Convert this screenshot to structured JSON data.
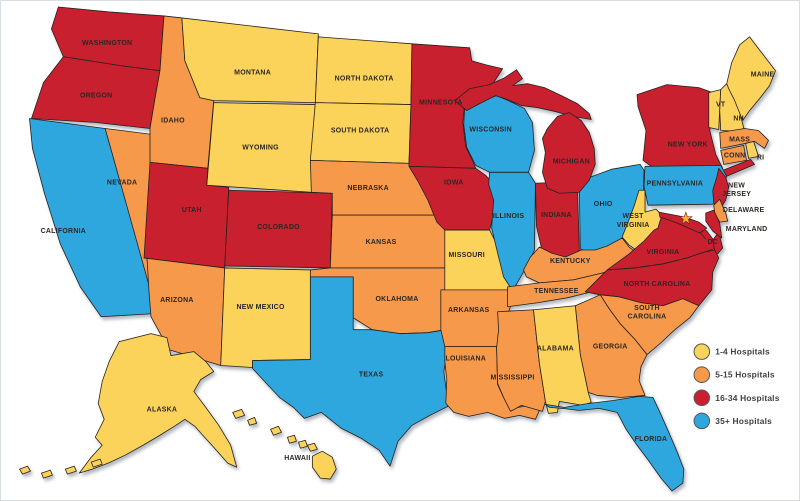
{
  "map": {
    "title_hint": "US map of hospitals per state",
    "dc_label": "DC",
    "star_color": "#F7B32B",
    "states": [
      {
        "id": "WA",
        "label": "WASHINGTON",
        "hospitals": "16-34"
      },
      {
        "id": "OR",
        "label": "OREGON",
        "hospitals": "16-34"
      },
      {
        "id": "CA",
        "label": "CALIFORNIA",
        "hospitals": "35+"
      },
      {
        "id": "NV",
        "label": "NEVADA",
        "hospitals": "5-15"
      },
      {
        "id": "ID",
        "label": "IDAHO",
        "hospitals": "5-15"
      },
      {
        "id": "MT",
        "label": "MONTANA",
        "hospitals": "1-4"
      },
      {
        "id": "WY",
        "label": "WYOMING",
        "hospitals": "1-4"
      },
      {
        "id": "UT",
        "label": "UTAH",
        "hospitals": "16-34"
      },
      {
        "id": "CO",
        "label": "COLORADO",
        "hospitals": "16-34"
      },
      {
        "id": "AZ",
        "label": "ARIZONA",
        "hospitals": "5-15"
      },
      {
        "id": "NM",
        "label": "NEW MEXICO",
        "hospitals": "1-4"
      },
      {
        "id": "ND",
        "label": "NORTH DAKOTA",
        "hospitals": "1-4"
      },
      {
        "id": "SD",
        "label": "SOUTH DAKOTA",
        "hospitals": "1-4"
      },
      {
        "id": "NE",
        "label": "NEBRASKA",
        "hospitals": "5-15"
      },
      {
        "id": "KS",
        "label": "KANSAS",
        "hospitals": "5-15"
      },
      {
        "id": "OK",
        "label": "OKLAHOMA",
        "hospitals": "5-15"
      },
      {
        "id": "TX",
        "label": "TEXAS",
        "hospitals": "35+"
      },
      {
        "id": "MN",
        "label": "MINNESOTA",
        "hospitals": "16-34"
      },
      {
        "id": "IA",
        "label": "IOWA",
        "hospitals": "16-34"
      },
      {
        "id": "MO",
        "label": "MISSOURI",
        "hospitals": "1-4"
      },
      {
        "id": "AR",
        "label": "ARKANSAS",
        "hospitals": "5-15"
      },
      {
        "id": "LA",
        "label": "LOUISIANA",
        "hospitals": "5-15"
      },
      {
        "id": "MS",
        "label": "MISSISSIPPI",
        "hospitals": "5-15"
      },
      {
        "id": "WI",
        "label": "WISCONSIN",
        "hospitals": "35+"
      },
      {
        "id": "IL",
        "label": "ILLINOIS",
        "hospitals": "35+"
      },
      {
        "id": "IN",
        "label": "INDIANA",
        "hospitals": "16-34"
      },
      {
        "id": "OH",
        "label": "OHIO",
        "hospitals": "35+"
      },
      {
        "id": "MI",
        "label": "MICHIGAN",
        "hospitals": "16-34"
      },
      {
        "id": "KY",
        "label": "KENTUCKY",
        "hospitals": "5-15"
      },
      {
        "id": "TN",
        "label": "TENNESSEE",
        "hospitals": "5-15"
      },
      {
        "id": "WV",
        "label": "WEST VIRGINIA",
        "hospitals": "1-4"
      },
      {
        "id": "VA",
        "label": "VIRGINIA",
        "hospitals": "16-34"
      },
      {
        "id": "NC",
        "label": "NORTH CAROLINA",
        "hospitals": "16-34"
      },
      {
        "id": "SC",
        "label": "SOUTH CAROLINA",
        "hospitals": "5-15"
      },
      {
        "id": "GA",
        "label": "GEORGIA",
        "hospitals": "5-15"
      },
      {
        "id": "AL",
        "label": "ALABAMA",
        "hospitals": "1-4"
      },
      {
        "id": "FL",
        "label": "FLORIDA",
        "hospitals": "35+"
      },
      {
        "id": "NY",
        "label": "NEW YORK",
        "hospitals": "16-34"
      },
      {
        "id": "PA",
        "label": "PENNSYLVANIA",
        "hospitals": "35+"
      },
      {
        "id": "NJ",
        "label": "NEW JERSEY",
        "hospitals": "16-34"
      },
      {
        "id": "DE",
        "label": "DELAWARE",
        "hospitals": "5-15"
      },
      {
        "id": "MD",
        "label": "MARYLAND",
        "hospitals": "16-34"
      },
      {
        "id": "VT",
        "label": "VT",
        "hospitals": "1-4"
      },
      {
        "id": "NH",
        "label": "NH",
        "hospitals": "1-4"
      },
      {
        "id": "MA",
        "label": "MASS",
        "hospitals": "5-15"
      },
      {
        "id": "CT",
        "label": "CONN",
        "hospitals": "5-15"
      },
      {
        "id": "RI",
        "label": "RI",
        "hospitals": "1-4"
      },
      {
        "id": "ME",
        "label": "MAINE",
        "hospitals": "1-4"
      },
      {
        "id": "AK",
        "label": "ALASKA",
        "hospitals": "1-4"
      },
      {
        "id": "HI",
        "label": "HAWAII",
        "hospitals": "1-4"
      }
    ]
  },
  "legend": {
    "items": [
      {
        "key": "1-4",
        "label": "1-4 Hospitals",
        "color": "#FBD35B"
      },
      {
        "key": "5-15",
        "label": "5-15 Hospitals",
        "color": "#F6994B"
      },
      {
        "key": "16-34",
        "label": "16-34 Hospitals",
        "color": "#C9202F"
      },
      {
        "key": "35+",
        "label": "35+ Hospitals",
        "color": "#2EA7DF"
      }
    ]
  }
}
